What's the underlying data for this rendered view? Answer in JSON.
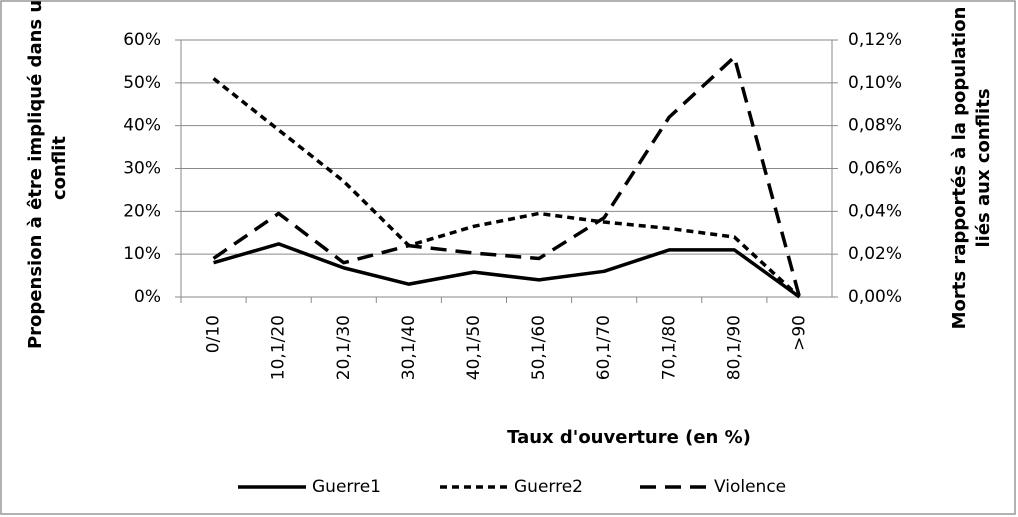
{
  "chart_data": {
    "type": "line",
    "x_label": "Taux d'ouverture (en %)",
    "y_label": [
      "Propension à être impliqué dans un",
      "conflit"
    ],
    "y2_label": [
      "Morts rapportés à la population",
      "liés aux conflits"
    ],
    "categories": [
      "0/10",
      "10,1/20",
      "20,1/30",
      "30,1/40",
      "40,1/50",
      "50,1/60",
      "60,1/70",
      "70,1/80",
      "80,1/90",
      ">90"
    ],
    "ylim": [
      0,
      60
    ],
    "yticks": [
      {
        "value": 0,
        "label": "0%"
      },
      {
        "value": 10,
        "label": "10%"
      },
      {
        "value": 20,
        "label": "20%"
      },
      {
        "value": 30,
        "label": "30%"
      },
      {
        "value": 40,
        "label": "40%"
      },
      {
        "value": 50,
        "label": "50%"
      },
      {
        "value": 60,
        "label": "60%"
      }
    ],
    "y2lim": [
      0,
      0.12
    ],
    "y2ticks": [
      {
        "value": 0,
        "label": "0,00%"
      },
      {
        "value": 0.02,
        "label": "0,02%"
      },
      {
        "value": 0.04,
        "label": "0,04%"
      },
      {
        "value": 0.06,
        "label": "0,06%"
      },
      {
        "value": 0.08,
        "label": "0,08%"
      },
      {
        "value": 0.1,
        "label": "0,10%"
      },
      {
        "value": 0.12,
        "label": "0,12%"
      }
    ],
    "grid": true,
    "legend": "bottom",
    "series": [
      {
        "name": "Guerre1",
        "color": "#000000",
        "line_style": "solid",
        "values": [
          8,
          12.4,
          6.8,
          3,
          5.8,
          4,
          6,
          11,
          11,
          0
        ]
      },
      {
        "name": "Guerre2",
        "color": "#000000",
        "line_style": "short-dash",
        "values": [
          51,
          39,
          27,
          12,
          16.5,
          19.5,
          17.5,
          16,
          14,
          0
        ]
      },
      {
        "name": "Violence",
        "color": "#000000",
        "line_style": "long-dash",
        "axis": "y2",
        "values": [
          0.018,
          0.039,
          0.016,
          0.024,
          0.0205,
          0.018,
          0.037,
          0.084,
          0.112,
          0
        ]
      }
    ]
  }
}
